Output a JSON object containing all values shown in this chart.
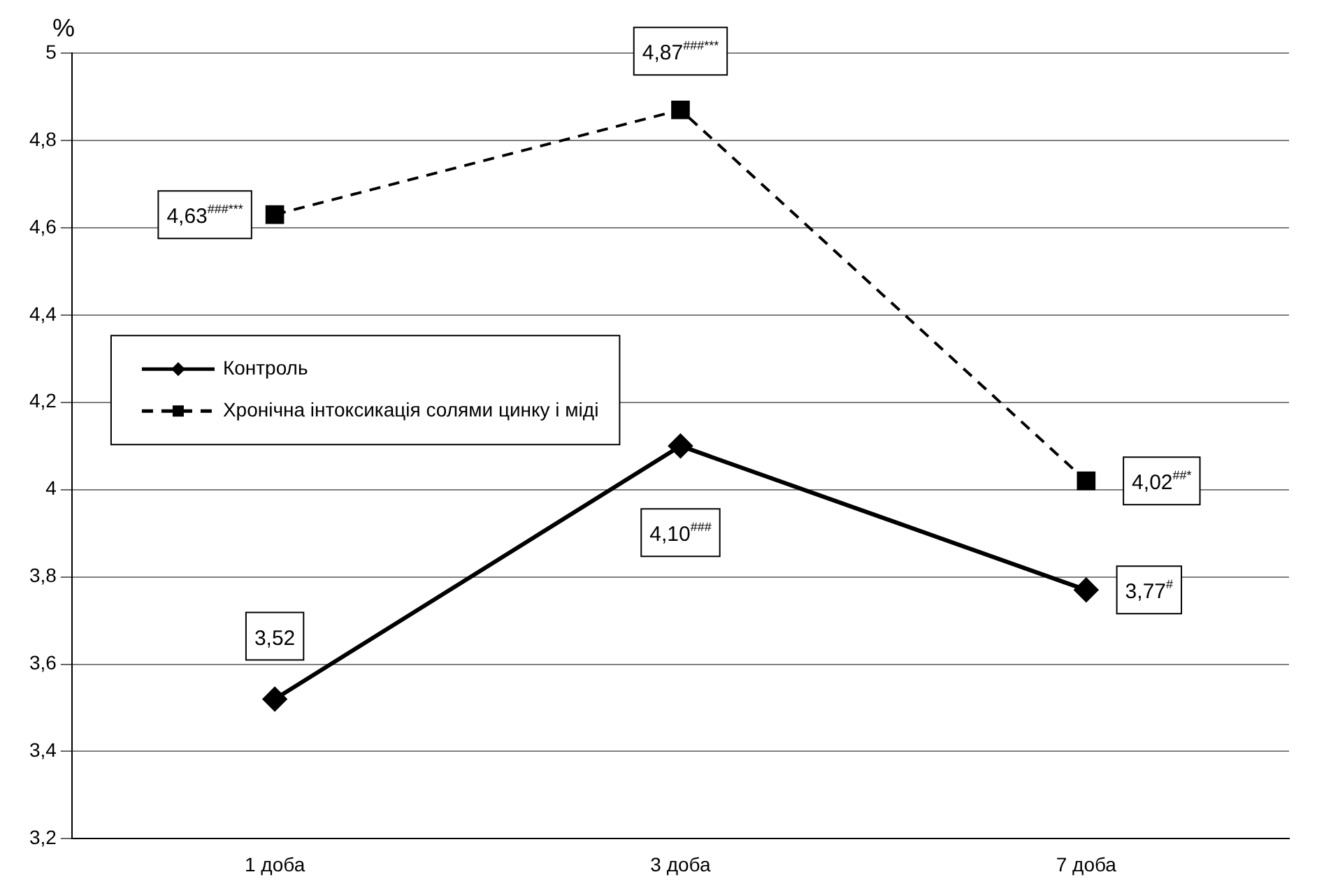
{
  "chart_data": {
    "type": "line",
    "ylabel": "%",
    "categories": [
      "1 доба",
      "3 доба",
      "7 доба"
    ],
    "series": [
      {
        "name": "Контроль",
        "color": "#000000",
        "values": [
          3.52,
          4.1,
          3.77
        ],
        "marker": "diamond",
        "line_style": "solid",
        "value_labels": [
          "3,52",
          "4,10$^{###}$",
          "3,77$^{#}$"
        ]
      },
      {
        "name": "Хронічна інтоксикація солями цинку і міді",
        "color": "#000000",
        "values": [
          4.63,
          4.87,
          4.02
        ],
        "marker": "square",
        "line_style": "dashed",
        "value_labels": [
          "4,63$^{###***}$",
          "4,87$^{###***}$",
          "4,02$^{##*}$"
        ]
      }
    ],
    "ylim": [
      3.2,
      5
    ],
    "yticks": [
      {
        "value": 3.2,
        "label": "3,2"
      },
      {
        "value": 3.4,
        "label": "3,4"
      },
      {
        "value": 3.6,
        "label": "3,6"
      },
      {
        "value": 3.8,
        "label": "3,8"
      },
      {
        "value": 4,
        "label": "4"
      },
      {
        "value": 4.2,
        "label": "4,2"
      },
      {
        "value": 4.4,
        "label": "4,4"
      },
      {
        "value": 4.6,
        "label": "4,6"
      },
      {
        "value": 4.8,
        "label": "4,8"
      },
      {
        "value": 5,
        "label": "5"
      }
    ],
    "grid": "y",
    "legend": "left"
  }
}
